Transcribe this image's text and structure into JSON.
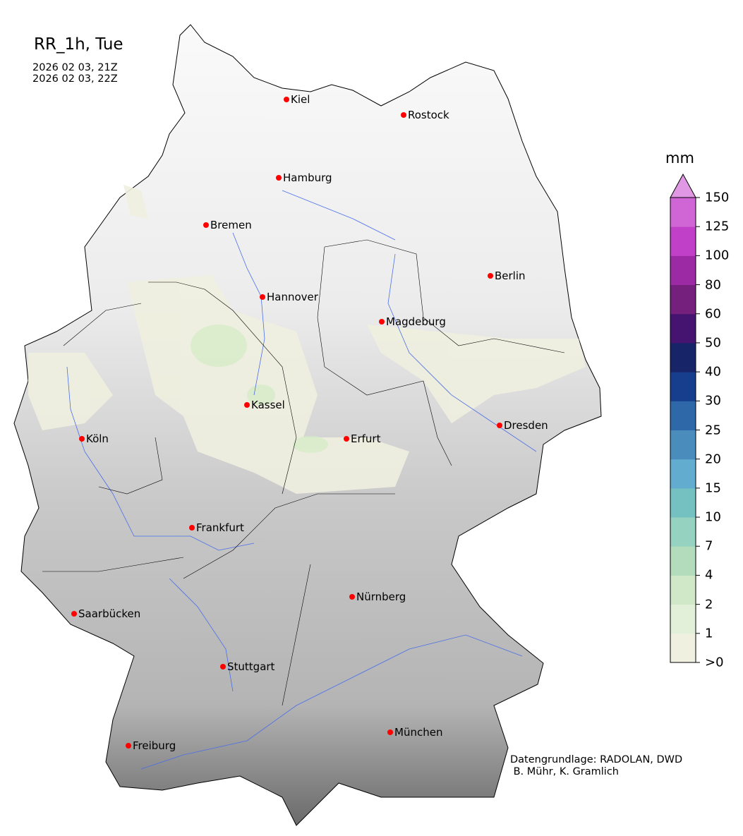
{
  "title": "RR_1h, Tue",
  "subtitle_lines": [
    "2026 02 03, 21Z",
    "2026 02 03, 22Z"
  ],
  "credits": [
    "Datengrundlage: RADOLAN, DWD",
    " B. Mühr, K. Gramlich"
  ],
  "colorbar": {
    "unit": "mm",
    "extend": "max",
    "ticks": [
      ">0",
      "1",
      "2",
      "4",
      "7",
      "10",
      "15",
      "20",
      "25",
      "30",
      "40",
      "50",
      "60",
      "80",
      "100",
      "125",
      "150"
    ],
    "colors": [
      "#f0f0e0",
      "#e2f0d9",
      "#d1e8c8",
      "#b2dcbc",
      "#96d2c0",
      "#75c0c0",
      "#62acd0",
      "#4a8cbc",
      "#2e68a8",
      "#163e8c",
      "#182468",
      "#451470",
      "#74207c",
      "#9c2aa4",
      "#c040c8",
      "#d066d6"
    ],
    "over_color": "#e098e4"
  },
  "cities": [
    {
      "name": "Kiel"
    },
    {
      "name": "Rostock"
    },
    {
      "name": "Hamburg"
    },
    {
      "name": "Bremen"
    },
    {
      "name": "Berlin"
    },
    {
      "name": "Hannover"
    },
    {
      "name": "Magdeburg"
    },
    {
      "name": "Kassel"
    },
    {
      "name": "Dresden"
    },
    {
      "name": "Köln"
    },
    {
      "name": "Erfurt"
    },
    {
      "name": "Frankfurt"
    },
    {
      "name": "Nürnberg"
    },
    {
      "name": "Saarbücken"
    },
    {
      "name": "Stuttgart"
    },
    {
      "name": "München"
    },
    {
      "name": "Freiburg"
    }
  ],
  "colors": {
    "city_marker": "#ff0000",
    "river": "#4a6ee8",
    "terrain_light": "#f2f2f2",
    "terrain_dark": "#555555"
  }
}
